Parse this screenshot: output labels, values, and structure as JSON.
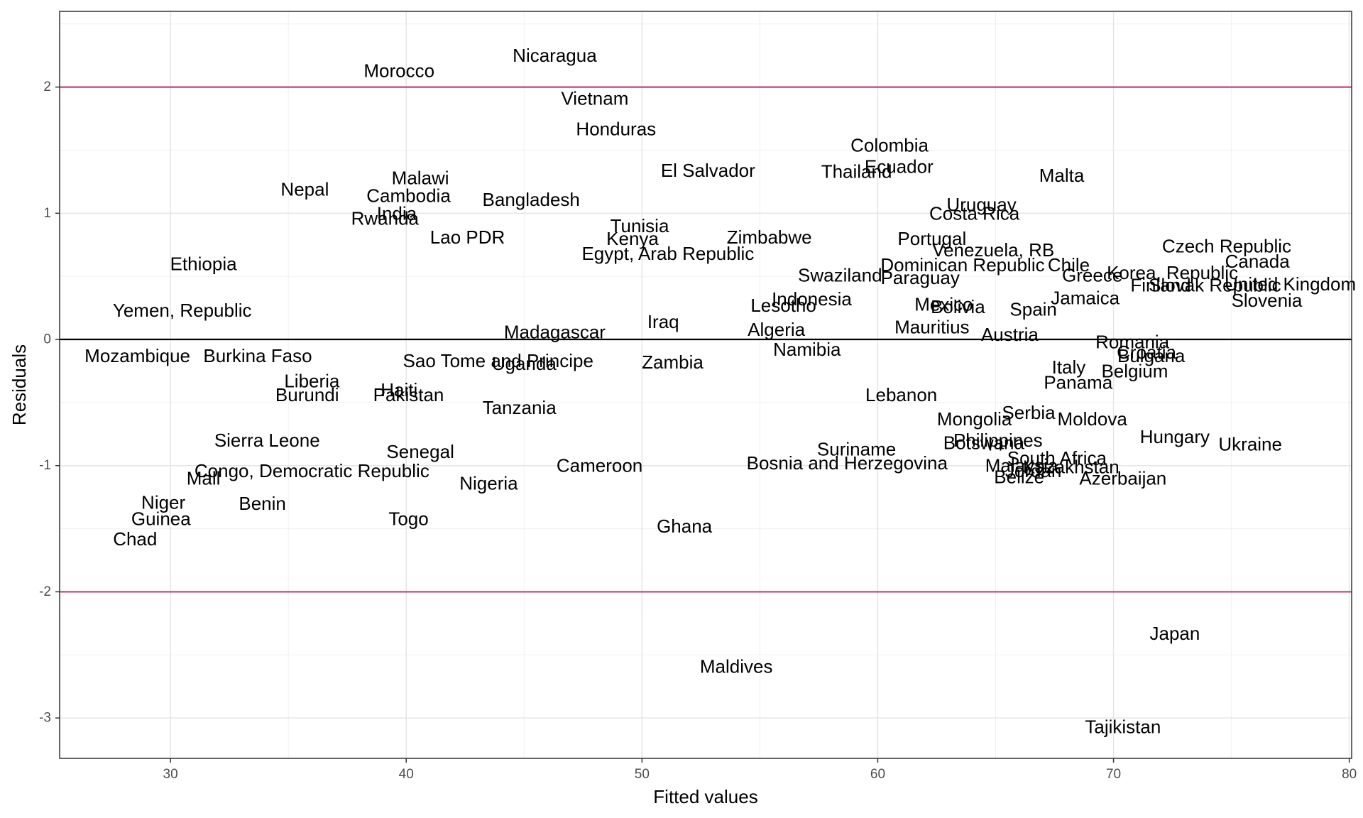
{
  "chart_data": {
    "type": "scatter",
    "xlabel": "Fitted values",
    "ylabel": "Residuals",
    "xlim": [
      25.3,
      80.1
    ],
    "ylim": [
      -3.32,
      2.6
    ],
    "x_ticks": [
      30,
      40,
      50,
      60,
      70,
      80
    ],
    "y_ticks": [
      -3,
      -2,
      -1,
      0,
      1,
      2
    ],
    "grid": true,
    "reference_lines": [
      {
        "y": 0,
        "color": "#000000"
      },
      {
        "y": 2,
        "color": "#c2417f"
      },
      {
        "y": -2,
        "color": "#c2417f"
      }
    ],
    "points": [
      {
        "label": "Nicaragua",
        "x": 46.3,
        "y": 2.25
      },
      {
        "label": "Morocco",
        "x": 39.7,
        "y": 2.13
      },
      {
        "label": "Vietnam",
        "x": 48.0,
        "y": 1.91
      },
      {
        "label": "Honduras",
        "x": 48.9,
        "y": 1.67
      },
      {
        "label": "Colombia",
        "x": 60.5,
        "y": 1.54
      },
      {
        "label": "Ecuador",
        "x": 60.9,
        "y": 1.37
      },
      {
        "label": "Thailand",
        "x": 59.1,
        "y": 1.33
      },
      {
        "label": "El Salvador",
        "x": 52.8,
        "y": 1.34
      },
      {
        "label": "Malta",
        "x": 67.8,
        "y": 1.3
      },
      {
        "label": "Malawi",
        "x": 40.6,
        "y": 1.28
      },
      {
        "label": "Nepal",
        "x": 35.7,
        "y": 1.19
      },
      {
        "label": "Cambodia",
        "x": 40.1,
        "y": 1.14
      },
      {
        "label": "Bangladesh",
        "x": 45.3,
        "y": 1.11
      },
      {
        "label": "Uruguay",
        "x": 64.4,
        "y": 1.07
      },
      {
        "label": "India",
        "x": 39.6,
        "y": 1.0
      },
      {
        "label": "Costa Rica",
        "x": 64.1,
        "y": 1.0
      },
      {
        "label": "Rwanda",
        "x": 39.1,
        "y": 0.96
      },
      {
        "label": "Tunisia",
        "x": 49.9,
        "y": 0.9
      },
      {
        "label": "Lao PDR",
        "x": 42.6,
        "y": 0.81
      },
      {
        "label": "Kenya",
        "x": 49.6,
        "y": 0.8
      },
      {
        "label": "Zimbabwe",
        "x": 55.4,
        "y": 0.81
      },
      {
        "label": "Portugal",
        "x": 62.3,
        "y": 0.8
      },
      {
        "label": "Venezuela, RB",
        "x": 64.9,
        "y": 0.71
      },
      {
        "label": "Czech Republic",
        "x": 74.8,
        "y": 0.74
      },
      {
        "label": "Canada",
        "x": 76.1,
        "y": 0.62
      },
      {
        "label": "Egypt, Arab Republic",
        "x": 51.1,
        "y": 0.68
      },
      {
        "label": "Ethiopia",
        "x": 31.4,
        "y": 0.6
      },
      {
        "label": "Dominican Republic",
        "x": 63.6,
        "y": 0.59
      },
      {
        "label": "Chile",
        "x": 68.1,
        "y": 0.59
      },
      {
        "label": "Korea, Republic",
        "x": 72.5,
        "y": 0.53
      },
      {
        "label": "Swaziland",
        "x": 58.4,
        "y": 0.51
      },
      {
        "label": "Paraguay",
        "x": 61.8,
        "y": 0.49
      },
      {
        "label": "Greece",
        "x": 69.1,
        "y": 0.51
      },
      {
        "label": "Finland",
        "x": 72.0,
        "y": 0.43
      },
      {
        "label": "Slovak Republic",
        "x": 74.3,
        "y": 0.43
      },
      {
        "label": "United Kingdom",
        "x": 77.5,
        "y": 0.44
      },
      {
        "label": "Indonesia",
        "x": 57.2,
        "y": 0.32
      },
      {
        "label": "Jamaica",
        "x": 68.8,
        "y": 0.33
      },
      {
        "label": "Slovenia",
        "x": 76.5,
        "y": 0.31
      },
      {
        "label": "Lesotho",
        "x": 56.0,
        "y": 0.27
      },
      {
        "label": "Mexico",
        "x": 62.8,
        "y": 0.28
      },
      {
        "label": "Bolivia",
        "x": 63.4,
        "y": 0.26
      },
      {
        "label": "Spain",
        "x": 66.6,
        "y": 0.24
      },
      {
        "label": "Yemen, Republic",
        "x": 30.5,
        "y": 0.23
      },
      {
        "label": "Iraq",
        "x": 50.9,
        "y": 0.14
      },
      {
        "label": "Mauritius",
        "x": 62.3,
        "y": 0.1
      },
      {
        "label": "Algeria",
        "x": 55.7,
        "y": 0.08
      },
      {
        "label": "Madagascar",
        "x": 46.3,
        "y": 0.06
      },
      {
        "label": "Austria",
        "x": 65.6,
        "y": 0.04
      },
      {
        "label": "Romania",
        "x": 70.8,
        "y": -0.02
      },
      {
        "label": "Namibia",
        "x": 57.0,
        "y": -0.08
      },
      {
        "label": "Croatia",
        "x": 71.4,
        "y": -0.1
      },
      {
        "label": "Bulgaria",
        "x": 71.6,
        "y": -0.13
      },
      {
        "label": "Mozambique",
        "x": 28.6,
        "y": -0.13
      },
      {
        "label": "Burkina Faso",
        "x": 33.7,
        "y": -0.13
      },
      {
        "label": "Sao Tome and Principe",
        "x": 43.9,
        "y": -0.17
      },
      {
        "label": "Uganda",
        "x": 45.0,
        "y": -0.19
      },
      {
        "label": "Zambia",
        "x": 51.3,
        "y": -0.18
      },
      {
        "label": "Italy",
        "x": 68.1,
        "y": -0.22
      },
      {
        "label": "Belgium",
        "x": 70.9,
        "y": -0.25
      },
      {
        "label": "Panama",
        "x": 68.5,
        "y": -0.34
      },
      {
        "label": "Liberia",
        "x": 36.0,
        "y": -0.33
      },
      {
        "label": "Haiti",
        "x": 39.7,
        "y": -0.4
      },
      {
        "label": "Pakistan",
        "x": 40.1,
        "y": -0.44
      },
      {
        "label": "Burundi",
        "x": 35.8,
        "y": -0.44
      },
      {
        "label": "Lebanon",
        "x": 61.0,
        "y": -0.44
      },
      {
        "label": "Tanzania",
        "x": 44.8,
        "y": -0.54
      },
      {
        "label": "Serbia",
        "x": 66.4,
        "y": -0.58
      },
      {
        "label": "Mongolia",
        "x": 64.1,
        "y": -0.63
      },
      {
        "label": "Moldova",
        "x": 69.1,
        "y": -0.63
      },
      {
        "label": "Hungary",
        "x": 72.6,
        "y": -0.77
      },
      {
        "label": "Sierra Leone",
        "x": 34.1,
        "y": -0.8
      },
      {
        "label": "Philippines",
        "x": 65.1,
        "y": -0.8
      },
      {
        "label": "Ukraine",
        "x": 75.8,
        "y": -0.83
      },
      {
        "label": "Botswana",
        "x": 64.5,
        "y": -0.82
      },
      {
        "label": "Suriname",
        "x": 59.1,
        "y": -0.87
      },
      {
        "label": "Senegal",
        "x": 40.6,
        "y": -0.89
      },
      {
        "label": "South Africa",
        "x": 67.6,
        "y": -0.94
      },
      {
        "label": "Bosnia and Herzegovina",
        "x": 58.7,
        "y": -0.98
      },
      {
        "label": "Cameroon",
        "x": 48.2,
        "y": -1.0
      },
      {
        "label": "Malaysia",
        "x": 66.1,
        "y": -1.0
      },
      {
        "label": "Kazakhstan",
        "x": 68.2,
        "y": -1.01
      },
      {
        "label": "Jordan",
        "x": 66.6,
        "y": -1.04
      },
      {
        "label": "Congo, Democratic Republic",
        "x": 36.0,
        "y": -1.04
      },
      {
        "label": "Mall",
        "x": 31.4,
        "y": -1.1
      },
      {
        "label": "Belize",
        "x": 66.0,
        "y": -1.09
      },
      {
        "label": "Azerbaijan",
        "x": 70.4,
        "y": -1.1
      },
      {
        "label": "Nigeria",
        "x": 43.5,
        "y": -1.14
      },
      {
        "label": "Niger",
        "x": 29.7,
        "y": -1.29
      },
      {
        "label": "Benin",
        "x": 33.9,
        "y": -1.3
      },
      {
        "label": "Guinea",
        "x": 29.6,
        "y": -1.42
      },
      {
        "label": "Togo",
        "x": 40.1,
        "y": -1.42
      },
      {
        "label": "Ghana",
        "x": 51.8,
        "y": -1.48
      },
      {
        "label": "Chad",
        "x": 28.5,
        "y": -1.58
      },
      {
        "label": "Japan",
        "x": 72.6,
        "y": -2.33
      },
      {
        "label": "Maldives",
        "x": 54.0,
        "y": -2.59
      },
      {
        "label": "Tajikistan",
        "x": 70.4,
        "y": -3.07
      }
    ]
  }
}
